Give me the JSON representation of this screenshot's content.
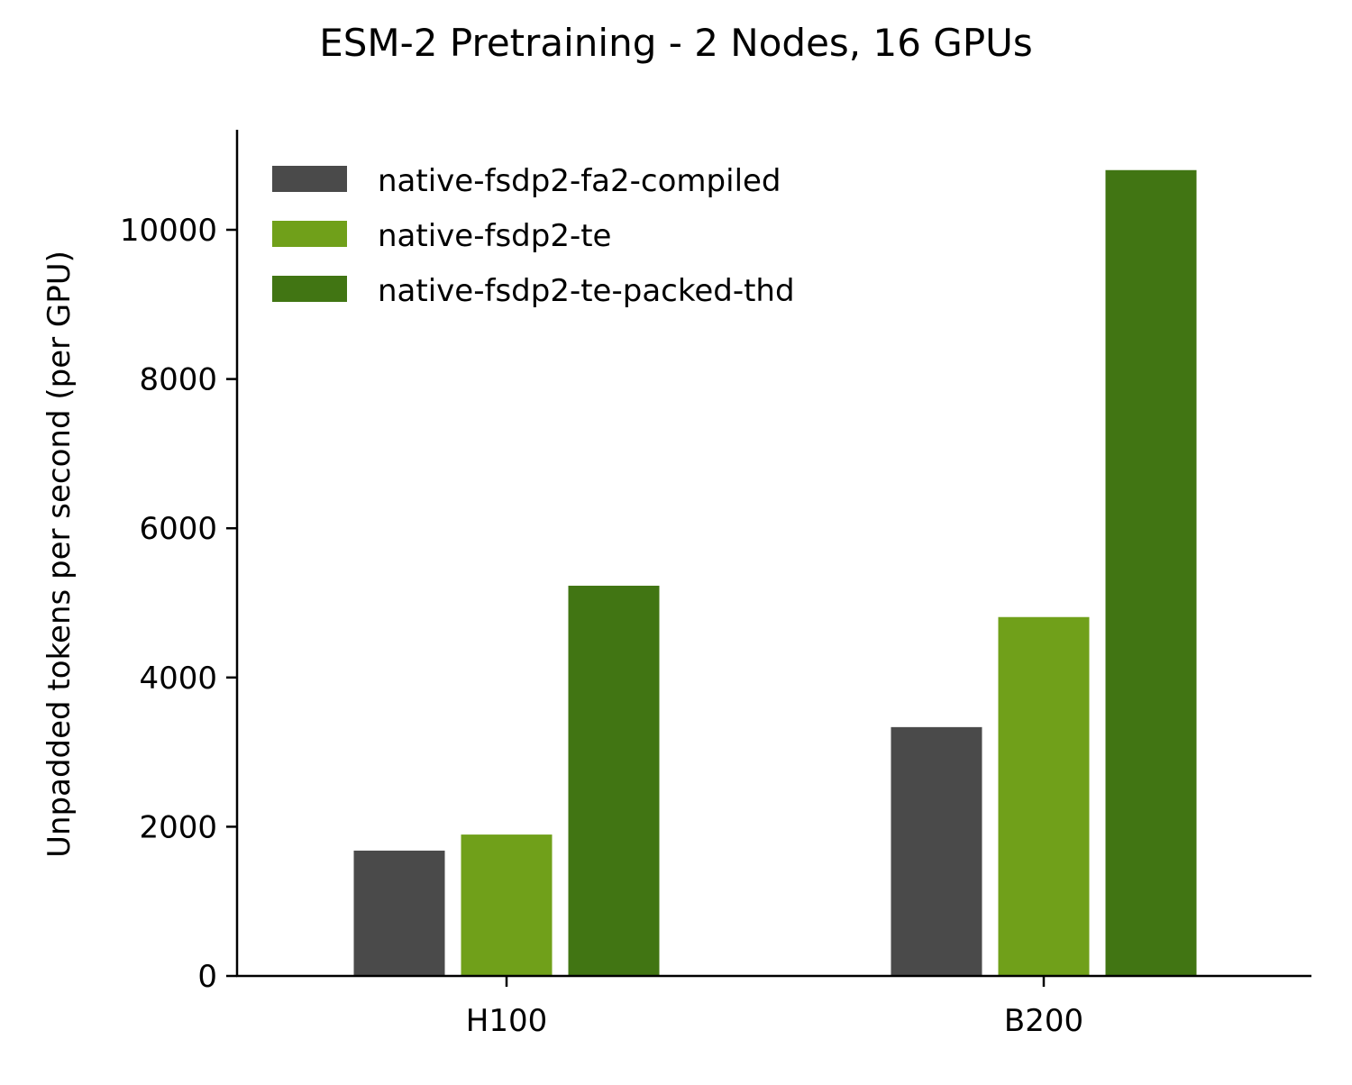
{
  "chart_data": {
    "type": "bar",
    "title": "ESM-2 Pretraining - 2 Nodes, 16 GPUs",
    "xlabel": "",
    "ylabel": "Unpadded tokens per second (per GPU)",
    "categories": [
      "H100",
      "B200"
    ],
    "series": [
      {
        "name": "native-fsdp2-fa2-compiled",
        "color": "#4a4a4a",
        "values": [
          1680,
          3335
        ]
      },
      {
        "name": "native-fsdp2-te",
        "color": "#70a01a",
        "values": [
          1895,
          4810
        ]
      },
      {
        "name": "native-fsdp2-te-packed-thd",
        "color": "#417513",
        "values": [
          5230,
          10800
        ]
      }
    ],
    "ylim": [
      0,
      11340
    ],
    "yticks": [
      0,
      2000,
      4000,
      6000,
      8000,
      10000
    ],
    "ytick_labels": [
      "0",
      "2000",
      "4000",
      "6000",
      "8000",
      "10000"
    ],
    "grid": false,
    "legend_position": "upper left",
    "legend_frame": false
  }
}
